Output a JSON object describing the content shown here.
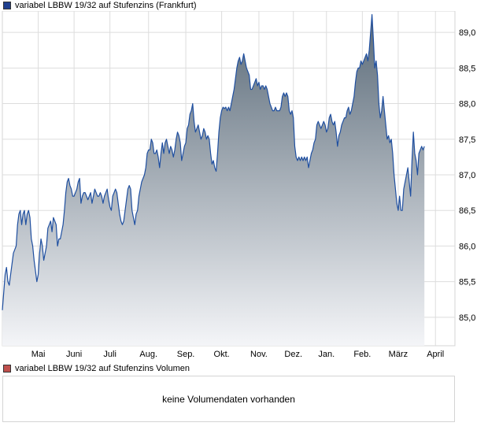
{
  "legend": {
    "price_label": "variabel LBBW 19/32 auf Stufenzins (Frankfurt)",
    "volume_label": "variabel LBBW 19/32 auf Stufenzins Volumen"
  },
  "volume": {
    "message": "keine Volumendaten vorhanden"
  },
  "colors": {
    "line": "#1f4fa0",
    "fill_top": "#5a6a78",
    "fill_bottom": "#f4f5f8",
    "grid": "#dddddd",
    "border": "#d4d4d4"
  },
  "chart_data": {
    "type": "area",
    "title": "",
    "xlabel": "",
    "ylabel": "",
    "ylim": [
      84.6,
      89.3
    ],
    "yticks": [
      85.0,
      85.5,
      86.0,
      86.5,
      87.0,
      87.5,
      88.0,
      88.5,
      89.0
    ],
    "ytick_labels": [
      "85,0",
      "85,5",
      "86,0",
      "86,5",
      "87,0",
      "87,5",
      "88,0",
      "88,5",
      "89,0"
    ],
    "xlim": [
      0,
      327
    ],
    "x_ticks": [
      {
        "x": 26,
        "label": "Mai"
      },
      {
        "x": 52,
        "label": "Juni"
      },
      {
        "x": 78,
        "label": "Juli"
      },
      {
        "x": 106,
        "label": "Aug."
      },
      {
        "x": 133,
        "label": "Sep."
      },
      {
        "x": 159,
        "label": "Okt."
      },
      {
        "x": 186,
        "label": "Nov."
      },
      {
        "x": 211,
        "label": "Dez."
      },
      {
        "x": 235,
        "label": "Jan."
      },
      {
        "x": 261,
        "label": "Feb."
      },
      {
        "x": 287,
        "label": "März"
      },
      {
        "x": 314,
        "label": "April"
      }
    ],
    "grid": true,
    "series": [
      {
        "name": "variabel LBBW 19/32 auf Stufenzins (Frankfurt)",
        "points": [
          [
            0,
            85.1
          ],
          [
            1,
            85.35
          ],
          [
            2,
            85.6
          ],
          [
            3,
            85.7
          ],
          [
            4,
            85.5
          ],
          [
            5,
            85.45
          ],
          [
            6,
            85.6
          ],
          [
            7,
            85.75
          ],
          [
            8,
            85.9
          ],
          [
            9,
            85.95
          ],
          [
            10,
            86.0
          ],
          [
            11,
            86.3
          ],
          [
            12,
            86.45
          ],
          [
            13,
            86.5
          ],
          [
            14,
            86.3
          ],
          [
            15,
            86.45
          ],
          [
            16,
            86.5
          ],
          [
            17,
            86.3
          ],
          [
            18,
            86.45
          ],
          [
            19,
            86.5
          ],
          [
            20,
            86.4
          ],
          [
            21,
            86.1
          ],
          [
            22,
            86.0
          ],
          [
            23,
            85.8
          ],
          [
            24,
            85.65
          ],
          [
            25,
            85.5
          ],
          [
            26,
            85.6
          ],
          [
            27,
            85.9
          ],
          [
            28,
            86.1
          ],
          [
            29,
            86.0
          ],
          [
            30,
            85.8
          ],
          [
            31,
            85.9
          ],
          [
            32,
            86.0
          ],
          [
            33,
            86.25
          ],
          [
            34,
            86.3
          ],
          [
            35,
            86.35
          ],
          [
            36,
            86.2
          ],
          [
            37,
            86.4
          ],
          [
            38,
            86.35
          ],
          [
            39,
            86.3
          ],
          [
            40,
            86.0
          ],
          [
            41,
            86.1
          ],
          [
            42,
            86.1
          ],
          [
            43,
            86.2
          ],
          [
            44,
            86.3
          ],
          [
            45,
            86.5
          ],
          [
            46,
            86.75
          ],
          [
            47,
            86.9
          ],
          [
            48,
            86.95
          ],
          [
            49,
            86.85
          ],
          [
            50,
            86.8
          ],
          [
            51,
            86.7
          ],
          [
            52,
            86.7
          ],
          [
            53,
            86.75
          ],
          [
            54,
            86.8
          ],
          [
            55,
            86.9
          ],
          [
            56,
            86.95
          ],
          [
            57,
            86.6
          ],
          [
            58,
            86.7
          ],
          [
            59,
            86.75
          ],
          [
            60,
            86.75
          ],
          [
            61,
            86.7
          ],
          [
            62,
            86.65
          ],
          [
            63,
            86.7
          ],
          [
            64,
            86.75
          ],
          [
            65,
            86.6
          ],
          [
            66,
            86.7
          ],
          [
            67,
            86.8
          ],
          [
            68,
            86.75
          ],
          [
            69,
            86.7
          ],
          [
            70,
            86.7
          ],
          [
            71,
            86.75
          ],
          [
            72,
            86.7
          ],
          [
            73,
            86.6
          ],
          [
            74,
            86.7
          ],
          [
            75,
            86.75
          ],
          [
            76,
            86.8
          ],
          [
            77,
            86.65
          ],
          [
            78,
            86.55
          ],
          [
            79,
            86.5
          ],
          [
            80,
            86.7
          ],
          [
            81,
            86.75
          ],
          [
            82,
            86.8
          ],
          [
            83,
            86.75
          ],
          [
            84,
            86.6
          ],
          [
            85,
            86.45
          ],
          [
            86,
            86.35
          ],
          [
            87,
            86.3
          ],
          [
            88,
            86.35
          ],
          [
            89,
            86.5
          ],
          [
            90,
            86.65
          ],
          [
            91,
            86.8
          ],
          [
            92,
            86.85
          ],
          [
            93,
            86.8
          ],
          [
            94,
            86.5
          ],
          [
            95,
            86.4
          ],
          [
            96,
            86.3
          ],
          [
            97,
            86.45
          ],
          [
            98,
            86.5
          ],
          [
            99,
            86.7
          ],
          [
            100,
            86.8
          ],
          [
            101,
            86.9
          ],
          [
            102,
            86.95
          ],
          [
            103,
            87.0
          ],
          [
            104,
            87.1
          ],
          [
            105,
            87.3
          ],
          [
            106,
            87.35
          ],
          [
            107,
            87.35
          ],
          [
            108,
            87.5
          ],
          [
            109,
            87.45
          ],
          [
            110,
            87.3
          ],
          [
            111,
            87.3
          ],
          [
            112,
            87.35
          ],
          [
            113,
            87.25
          ],
          [
            114,
            87.1
          ],
          [
            115,
            87.3
          ],
          [
            116,
            87.45
          ],
          [
            117,
            87.3
          ],
          [
            118,
            87.45
          ],
          [
            119,
            87.5
          ],
          [
            120,
            87.4
          ],
          [
            121,
            87.3
          ],
          [
            122,
            87.4
          ],
          [
            123,
            87.35
          ],
          [
            124,
            87.25
          ],
          [
            125,
            87.35
          ],
          [
            126,
            87.5
          ],
          [
            127,
            87.6
          ],
          [
            128,
            87.55
          ],
          [
            129,
            87.45
          ],
          [
            130,
            87.2
          ],
          [
            131,
            87.3
          ],
          [
            132,
            87.4
          ],
          [
            133,
            87.45
          ],
          [
            134,
            87.65
          ],
          [
            135,
            87.7
          ],
          [
            136,
            87.85
          ],
          [
            137,
            87.9
          ],
          [
            138,
            88.0
          ],
          [
            139,
            87.75
          ],
          [
            140,
            87.6
          ],
          [
            141,
            87.65
          ],
          [
            142,
            87.7
          ],
          [
            143,
            87.6
          ],
          [
            144,
            87.5
          ],
          [
            145,
            87.55
          ],
          [
            146,
            87.65
          ],
          [
            147,
            87.6
          ],
          [
            148,
            87.5
          ],
          [
            149,
            87.55
          ],
          [
            150,
            87.5
          ],
          [
            151,
            87.3
          ],
          [
            152,
            87.15
          ],
          [
            153,
            87.2
          ],
          [
            154,
            87.1
          ],
          [
            155,
            87.05
          ],
          [
            156,
            87.3
          ],
          [
            157,
            87.6
          ],
          [
            158,
            87.8
          ],
          [
            159,
            87.9
          ],
          [
            160,
            87.95
          ],
          [
            161,
            87.93
          ],
          [
            162,
            87.95
          ],
          [
            163,
            87.9
          ],
          [
            164,
            87.95
          ],
          [
            165,
            87.9
          ],
          [
            166,
            88.0
          ],
          [
            167,
            88.1
          ],
          [
            168,
            88.2
          ],
          [
            169,
            88.35
          ],
          [
            170,
            88.5
          ],
          [
            171,
            88.6
          ],
          [
            172,
            88.65
          ],
          [
            173,
            88.55
          ],
          [
            174,
            88.6
          ],
          [
            175,
            88.7
          ],
          [
            176,
            88.6
          ],
          [
            177,
            88.5
          ],
          [
            178,
            88.45
          ],
          [
            179,
            88.4
          ],
          [
            180,
            88.2
          ],
          [
            181,
            88.2
          ],
          [
            182,
            88.25
          ],
          [
            183,
            88.3
          ],
          [
            184,
            88.35
          ],
          [
            185,
            88.25
          ],
          [
            186,
            88.3
          ],
          [
            187,
            88.2
          ],
          [
            188,
            88.25
          ],
          [
            189,
            88.25
          ],
          [
            190,
            88.2
          ],
          [
            191,
            88.25
          ],
          [
            192,
            88.2
          ],
          [
            193,
            88.1
          ],
          [
            194,
            88.0
          ],
          [
            195,
            87.95
          ],
          [
            196,
            87.9
          ],
          [
            197,
            87.9
          ],
          [
            198,
            87.95
          ],
          [
            199,
            87.9
          ],
          [
            200,
            87.9
          ],
          [
            201,
            87.9
          ],
          [
            202,
            87.95
          ],
          [
            203,
            88.1
          ],
          [
            204,
            88.15
          ],
          [
            205,
            88.1
          ],
          [
            206,
            88.15
          ],
          [
            207,
            88.1
          ],
          [
            208,
            87.9
          ],
          [
            209,
            87.85
          ],
          [
            210,
            87.9
          ],
          [
            211,
            87.8
          ],
          [
            212,
            87.4
          ],
          [
            213,
            87.25
          ],
          [
            214,
            87.2
          ],
          [
            215,
            87.25
          ],
          [
            216,
            87.2
          ],
          [
            217,
            87.25
          ],
          [
            218,
            87.2
          ],
          [
            219,
            87.25
          ],
          [
            220,
            87.2
          ],
          [
            221,
            87.25
          ],
          [
            222,
            87.1
          ],
          [
            223,
            87.2
          ],
          [
            224,
            87.3
          ],
          [
            225,
            87.35
          ],
          [
            226,
            87.45
          ],
          [
            227,
            87.5
          ],
          [
            228,
            87.7
          ],
          [
            229,
            87.75
          ],
          [
            230,
            87.7
          ],
          [
            231,
            87.65
          ],
          [
            232,
            87.7
          ],
          [
            233,
            87.75
          ],
          [
            234,
            87.7
          ],
          [
            235,
            87.6
          ],
          [
            236,
            87.65
          ],
          [
            237,
            87.8
          ],
          [
            238,
            87.85
          ],
          [
            239,
            87.75
          ],
          [
            240,
            87.7
          ],
          [
            241,
            87.75
          ],
          [
            242,
            87.6
          ],
          [
            243,
            87.4
          ],
          [
            244,
            87.55
          ],
          [
            245,
            87.6
          ],
          [
            246,
            87.7
          ],
          [
            247,
            87.75
          ],
          [
            248,
            87.8
          ],
          [
            249,
            87.8
          ],
          [
            250,
            87.9
          ],
          [
            251,
            87.95
          ],
          [
            252,
            87.85
          ],
          [
            253,
            87.9
          ],
          [
            254,
            88.0
          ],
          [
            255,
            88.1
          ],
          [
            256,
            88.3
          ],
          [
            257,
            88.45
          ],
          [
            258,
            88.5
          ],
          [
            259,
            88.5
          ],
          [
            260,
            88.6
          ],
          [
            261,
            88.55
          ],
          [
            262,
            88.6
          ],
          [
            263,
            88.65
          ],
          [
            264,
            88.7
          ],
          [
            265,
            88.6
          ],
          [
            266,
            88.75
          ],
          [
            267,
            89.0
          ],
          [
            268,
            89.25
          ],
          [
            269,
            88.9
          ],
          [
            270,
            88.5
          ],
          [
            271,
            88.6
          ],
          [
            272,
            88.4
          ],
          [
            273,
            88.0
          ],
          [
            274,
            87.8
          ],
          [
            275,
            87.9
          ],
          [
            276,
            88.1
          ],
          [
            277,
            87.9
          ],
          [
            278,
            87.7
          ],
          [
            279,
            87.5
          ],
          [
            280,
            87.55
          ],
          [
            281,
            87.45
          ],
          [
            282,
            87.5
          ],
          [
            283,
            87.3
          ],
          [
            284,
            87.0
          ],
          [
            285,
            86.8
          ],
          [
            286,
            86.6
          ],
          [
            287,
            86.5
          ],
          [
            288,
            86.7
          ],
          [
            289,
            86.5
          ],
          [
            290,
            86.5
          ],
          [
            291,
            86.8
          ],
          [
            292,
            86.9
          ],
          [
            293,
            87.0
          ],
          [
            294,
            87.1
          ],
          [
            295,
            86.9
          ],
          [
            296,
            86.7
          ],
          [
            297,
            87.2
          ],
          [
            298,
            87.6
          ],
          [
            299,
            87.3
          ],
          [
            300,
            87.2
          ],
          [
            301,
            87.0
          ],
          [
            302,
            87.3
          ],
          [
            303,
            87.35
          ],
          [
            304,
            87.4
          ],
          [
            305,
            87.35
          ],
          [
            306,
            87.4
          ]
        ]
      }
    ]
  }
}
